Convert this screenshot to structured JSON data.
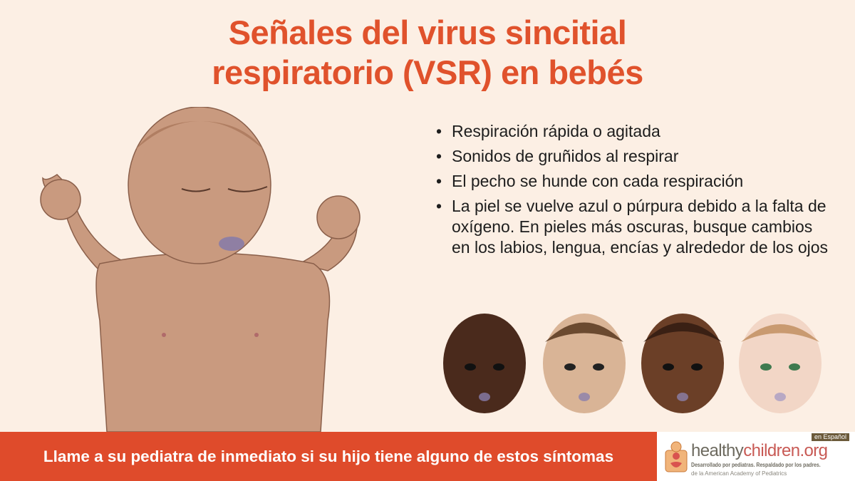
{
  "title": {
    "line1": "Señales del virus sincitial",
    "line2": "respiratorio (VSR) en bebés"
  },
  "bullets": [
    "Respiración rápida o agitada",
    "Sonidos de gruñidos al respirar",
    "El pecho se hunde con cada respiración",
    "La piel se vuelve azul o púrpura debido a la falta de oxígeno. En pieles más oscuras, busque cambios en los labios, lengua, encías y alrededor de los ojos"
  ],
  "footer": {
    "text": "Llame a su pediatra de inmediato si su hijo tiene alguno de estos síntomas"
  },
  "logo": {
    "name_part1": "healthy",
    "name_part2": "children.org",
    "badge": "en Español",
    "tagline": "Desarrollado por pediatras. Respaldado por los padres.",
    "sub": "de la American Academy of Pediatrics"
  },
  "colors": {
    "title": "#e0522c",
    "footer": "#df4b2b",
    "background": "#fcefe4",
    "skin_tones": [
      "#4a2a1c",
      "#d9b496",
      "#6b3f27",
      "#f2d6c6"
    ]
  }
}
